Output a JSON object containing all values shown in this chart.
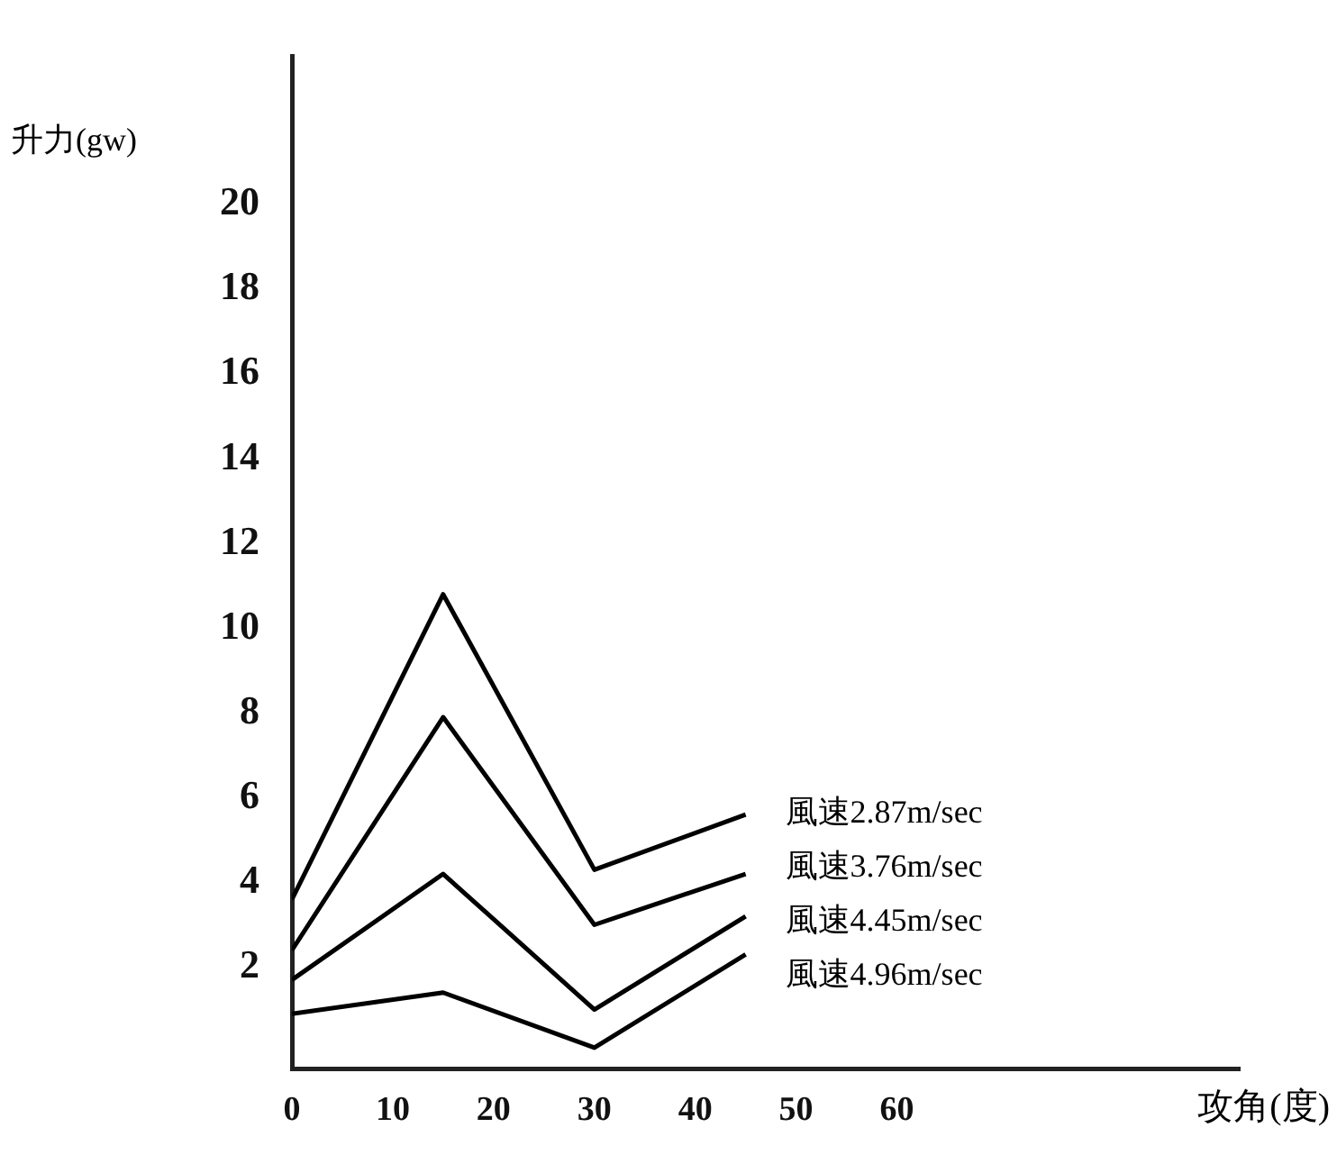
{
  "chart_data": {
    "type": "line",
    "ylabel": "升力(gw)",
    "xlabel": "攻角(度)",
    "x": [
      0,
      15,
      30,
      45
    ],
    "series": [
      {
        "name": "風速2.87m/sec",
        "color": "#000000",
        "values": [
          3.6,
          10.8,
          4.3,
          5.6
        ]
      },
      {
        "name": "風速3.76m/sec",
        "color": "#000000",
        "values": [
          2.4,
          7.9,
          3.0,
          4.2
        ]
      },
      {
        "name": "風速4.45m/sec",
        "color": "#000000",
        "values": [
          1.7,
          4.2,
          1.0,
          3.2
        ]
      },
      {
        "name": "風速4.96m/sec",
        "color": "#000000",
        "values": [
          0.9,
          1.4,
          0.1,
          2.3
        ]
      }
    ],
    "xlim": [
      0,
      94
    ],
    "xticks": [
      0,
      10,
      20,
      30,
      40,
      50,
      60
    ],
    "ylim": [
      -0.4,
      23.5
    ],
    "yticks": [
      2,
      4,
      6,
      8,
      10,
      12,
      14,
      16,
      18,
      20
    ],
    "grid": false,
    "legend": false,
    "marker": "none",
    "line_style": "solid"
  }
}
